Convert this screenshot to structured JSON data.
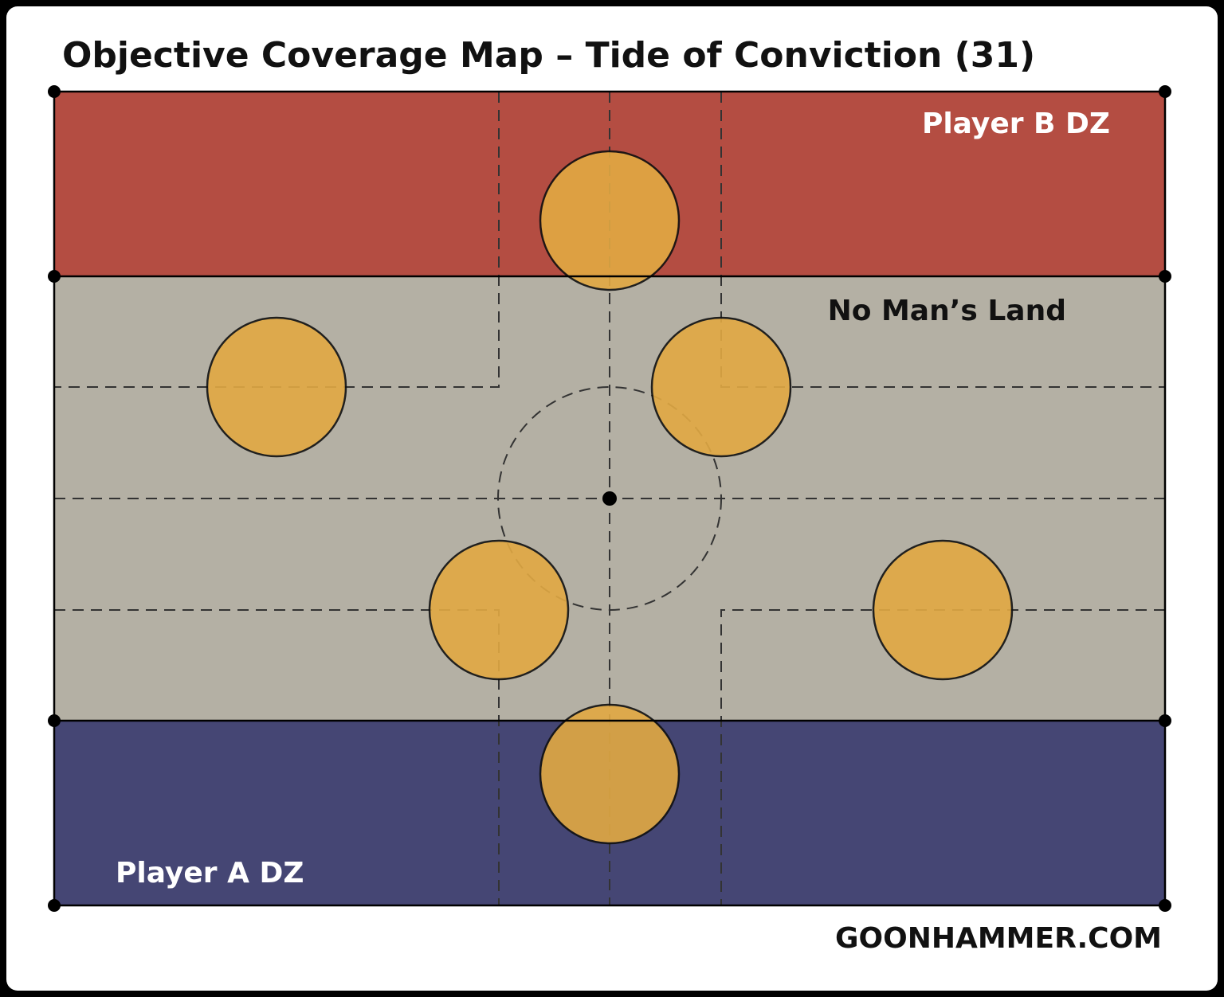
{
  "title": "Objective Coverage Map – Tide of Conviction (31)",
  "zones": [
    {
      "label": "Player B DZ"
    },
    {
      "label": "No Man’s Land"
    },
    {
      "label": "Player A DZ"
    }
  ],
  "footer": "GOONHAMMER.COM"
}
